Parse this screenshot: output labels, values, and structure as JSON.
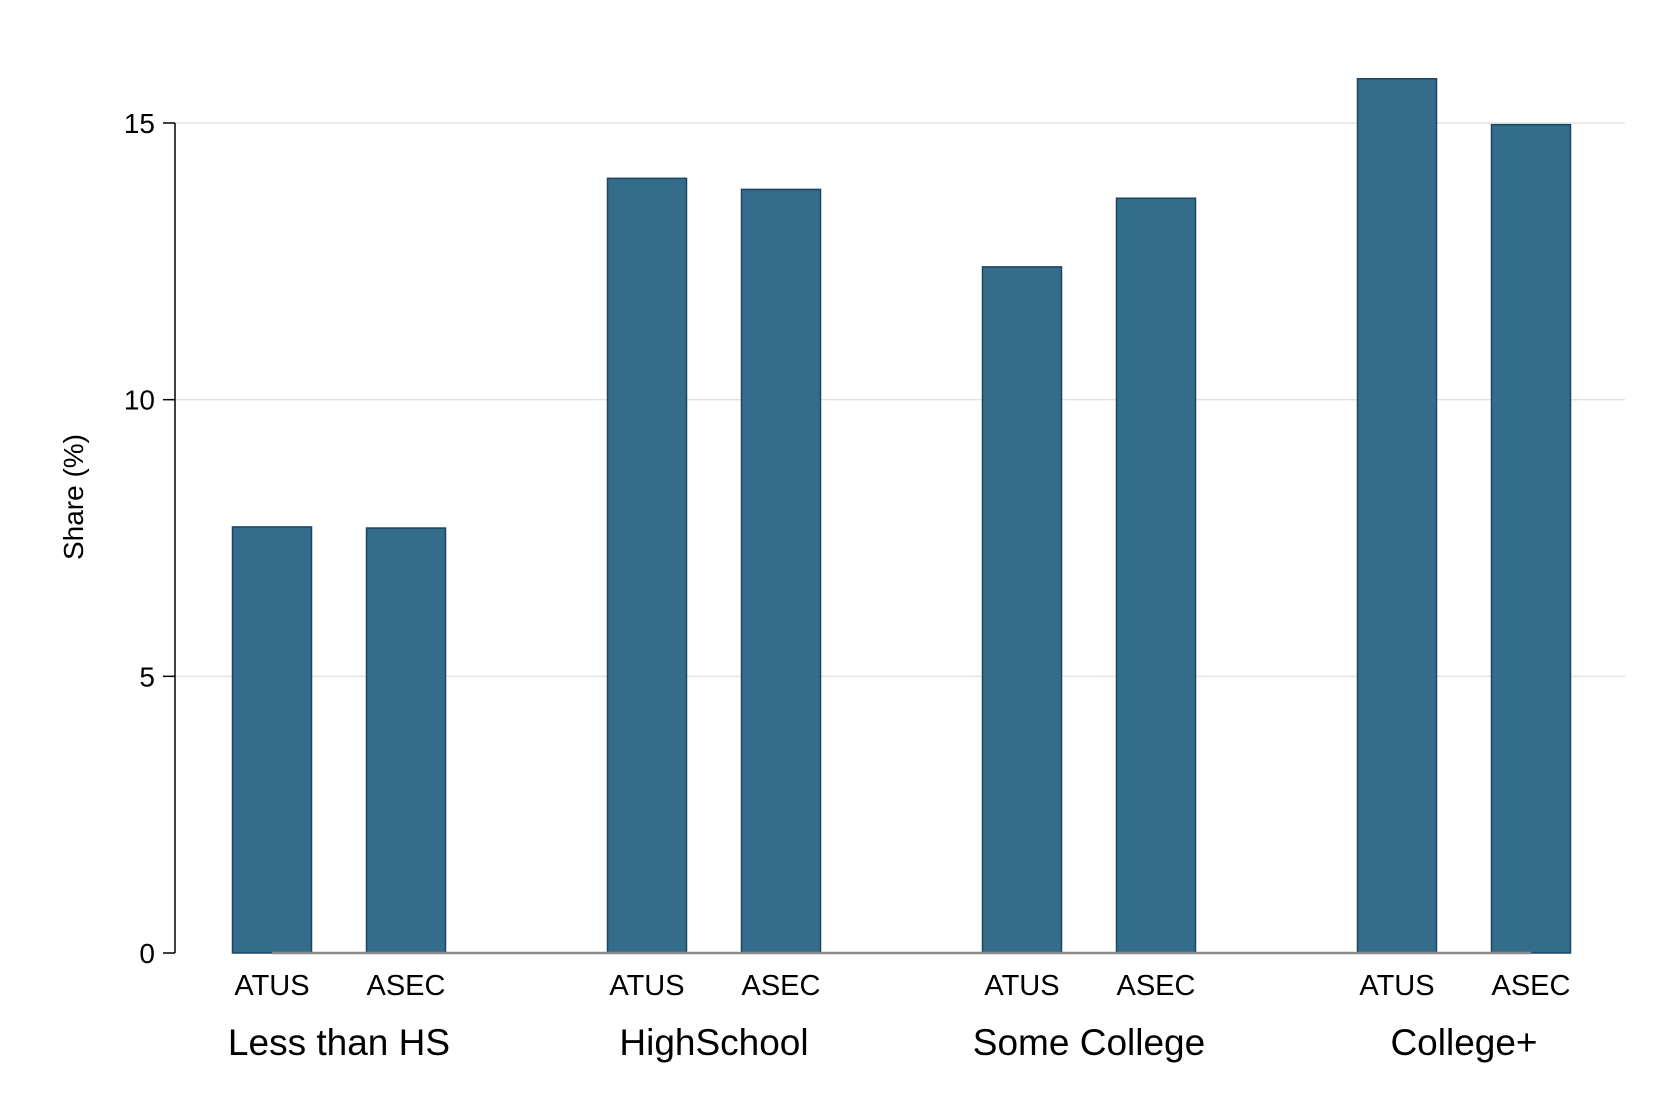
{
  "chart_data": {
    "type": "bar",
    "title": "",
    "xlabel": "",
    "ylabel": "Share (%)",
    "ylim": [
      0,
      15.8
    ],
    "yticks": [
      0,
      5,
      10,
      15
    ],
    "grid": true,
    "bar_color": "#346c8c",
    "bar_edge_color": "#1b4660",
    "groups": [
      {
        "label": "Less than HS",
        "bars": [
          {
            "label": "ATUS",
            "value": 7.7
          },
          {
            "label": "ASEC",
            "value": 7.68
          }
        ]
      },
      {
        "label": "HighSchool",
        "bars": [
          {
            "label": "ATUS",
            "value": 14.0
          },
          {
            "label": "ASEC",
            "value": 13.8
          }
        ]
      },
      {
        "label": "Some College",
        "bars": [
          {
            "label": "ATUS",
            "value": 12.4
          },
          {
            "label": "ASEC",
            "value": 13.64
          }
        ]
      },
      {
        "label": "College+",
        "bars": [
          {
            "label": "ATUS",
            "value": 15.8
          },
          {
            "label": "ASEC",
            "value": 14.97
          }
        ]
      }
    ]
  }
}
